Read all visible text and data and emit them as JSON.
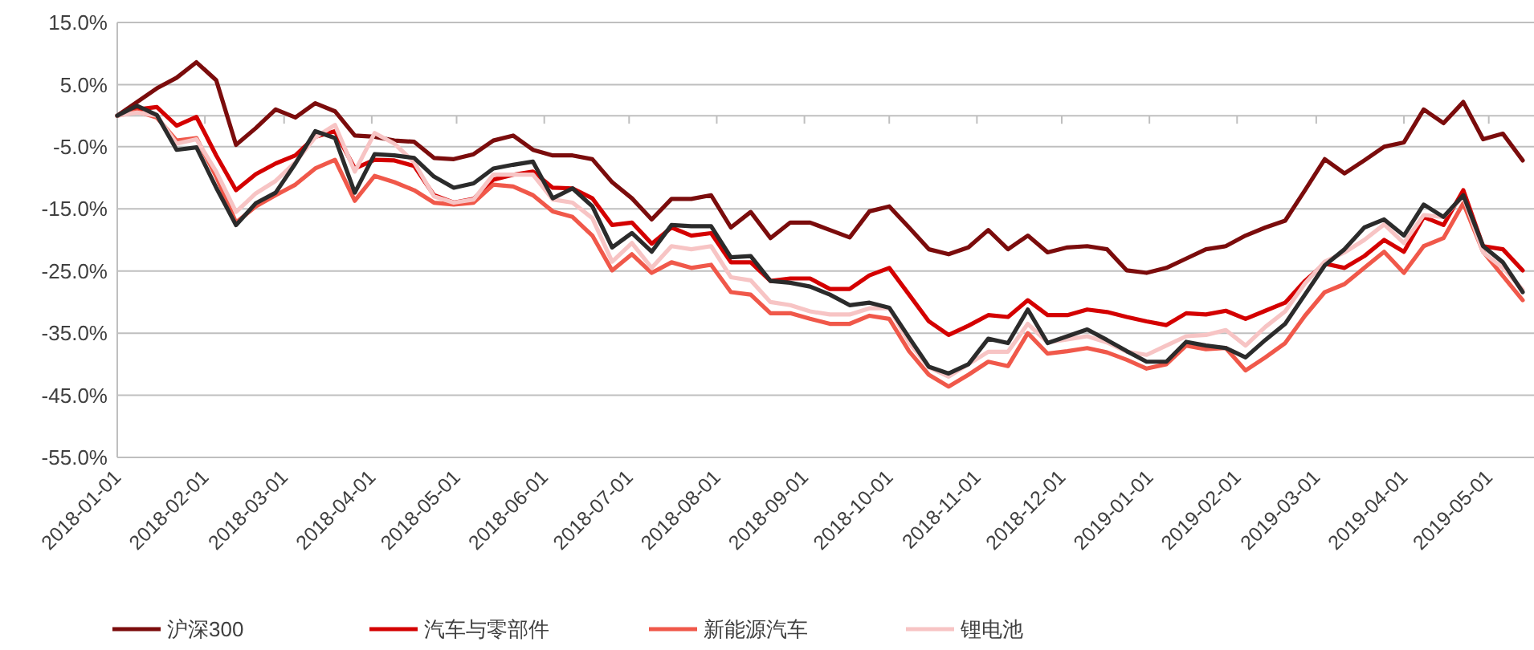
{
  "chart_data": {
    "type": "line",
    "x": [
      "2018-01-01",
      "2018-01-08",
      "2018-01-15",
      "2018-01-22",
      "2018-01-29",
      "2018-02-05",
      "2018-02-12",
      "2018-02-19",
      "2018-02-26",
      "2018-03-05",
      "2018-03-12",
      "2018-03-19",
      "2018-03-26",
      "2018-04-02",
      "2018-04-09",
      "2018-04-16",
      "2018-04-23",
      "2018-04-30",
      "2018-05-07",
      "2018-05-14",
      "2018-05-21",
      "2018-05-28",
      "2018-06-04",
      "2018-06-11",
      "2018-06-18",
      "2018-06-25",
      "2018-07-02",
      "2018-07-09",
      "2018-07-16",
      "2018-07-23",
      "2018-07-30",
      "2018-08-06",
      "2018-08-13",
      "2018-08-20",
      "2018-08-27",
      "2018-09-03",
      "2018-09-10",
      "2018-09-17",
      "2018-09-24",
      "2018-10-01",
      "2018-10-08",
      "2018-10-15",
      "2018-10-22",
      "2018-10-29",
      "2018-11-05",
      "2018-11-12",
      "2018-11-19",
      "2018-11-26",
      "2018-12-03",
      "2018-12-10",
      "2018-12-17",
      "2018-12-24",
      "2018-12-31",
      "2019-01-07",
      "2019-01-14",
      "2019-01-21",
      "2019-01-28",
      "2019-02-04",
      "2019-02-11",
      "2019-02-18",
      "2019-02-25",
      "2019-03-04",
      "2019-03-11",
      "2019-03-18",
      "2019-03-25",
      "2019-04-01",
      "2019-04-08",
      "2019-04-15",
      "2019-04-22",
      "2019-04-29",
      "2019-05-06",
      "2019-05-13"
    ],
    "series": [
      {
        "name": "沪深300",
        "color": "#7b0c0c",
        "values": [
          0,
          2.2,
          4.4,
          6.1,
          8.6,
          5.7,
          -4.7,
          -2,
          1,
          -0.3,
          2,
          0.7,
          -3.2,
          -3.4,
          -4,
          -4.2,
          -6.8,
          -7,
          -6.2,
          -4,
          -3.2,
          -5.5,
          -6.4,
          -6.4,
          -7,
          -10.7,
          -13.3,
          -16.7,
          -13.4,
          -13.4,
          -12.8,
          -18,
          -15.5,
          -19.7,
          -17.2,
          -17.2,
          -18.4,
          -19.6,
          -15.4,
          -14.6,
          -18,
          -21.5,
          -22.3,
          -21.2,
          -18.4,
          -21.5,
          -19.3,
          -22,
          -21.2,
          -21,
          -21.5,
          -24.9,
          -25.3,
          -24.5,
          -23,
          -21.5,
          -21,
          -19.3,
          -18,
          -16.9,
          -12,
          -7,
          -9.3,
          -7.2,
          -5,
          -4.3,
          1,
          -1.2,
          2.2,
          -3.8,
          -2.9,
          -7.2
        ]
      },
      {
        "name": "汽车与零部件",
        "color": "#d40000",
        "values": [
          0,
          1,
          1.4,
          -1.6,
          -0.2,
          -6.4,
          -12,
          -9.4,
          -7.7,
          -6.4,
          -3.4,
          -2.5,
          -8.5,
          -7.1,
          -7.2,
          -8.1,
          -12.8,
          -14,
          -13.4,
          -10.3,
          -9.5,
          -9,
          -11.6,
          -11.7,
          -13.3,
          -17.6,
          -17.2,
          -20.6,
          -18,
          -19.3,
          -18.9,
          -23.6,
          -23.6,
          -26.6,
          -26.2,
          -26.2,
          -27.9,
          -27.9,
          -25.7,
          -24.5,
          -28.8,
          -33.1,
          -35.3,
          -33.8,
          -32.1,
          -32.4,
          -29.7,
          -32.1,
          -32.1,
          -31.2,
          -31.6,
          -32.4,
          -33.1,
          -33.7,
          -31.8,
          -32,
          -31.4,
          -32.7,
          -31.4,
          -30.1,
          -26.6,
          -23.8,
          -24.5,
          -22.6,
          -20,
          -21.9,
          -16.3,
          -17.6,
          -12,
          -21,
          -21.5,
          -24.9
        ]
      },
      {
        "name": "新能源汽车",
        "color": "#f0584a",
        "values": [
          0,
          0.7,
          -0.3,
          -4,
          -3.6,
          -9.8,
          -17.2,
          -14.6,
          -12.8,
          -11.1,
          -8.5,
          -7.1,
          -13.7,
          -9.7,
          -10.7,
          -12,
          -14,
          -14.3,
          -14,
          -11.1,
          -11.4,
          -12.8,
          -15.4,
          -16.3,
          -19.3,
          -24.9,
          -22.3,
          -25.3,
          -23.6,
          -24.5,
          -24,
          -28.4,
          -28.8,
          -31.8,
          -31.8,
          -32.7,
          -33.5,
          -33.5,
          -32.2,
          -32.7,
          -37.9,
          -41.7,
          -43.6,
          -41.7,
          -39.6,
          -40.3,
          -35,
          -38.3,
          -37.9,
          -37.4,
          -38.1,
          -39.3,
          -40.7,
          -40,
          -37,
          -37.6,
          -37.4,
          -41,
          -38.9,
          -36.6,
          -32.2,
          -28.4,
          -27.1,
          -24.5,
          -21.9,
          -25.3,
          -21,
          -19.7,
          -14.1,
          -21.9,
          -25.8,
          -29.7
        ]
      },
      {
        "name": "锂电池",
        "color": "#f7c4c4",
        "values": [
          0,
          0.5,
          0,
          -4.5,
          -3.8,
          -9,
          -15.5,
          -12.5,
          -10.5,
          -7.5,
          -3.5,
          -1.5,
          -9,
          -2.8,
          -4.5,
          -7.5,
          -13,
          -14,
          -13.5,
          -9.5,
          -9.5,
          -9.5,
          -13.5,
          -14,
          -16.5,
          -23.5,
          -20.5,
          -24.5,
          -21,
          -21.5,
          -21,
          -26,
          -26.5,
          -30,
          -30.5,
          -31.5,
          -32,
          -32,
          -31,
          -31,
          -36.5,
          -40.5,
          -42,
          -40,
          -38,
          -38,
          -33.5,
          -36.5,
          -36,
          -35.5,
          -36.5,
          -38,
          -38.5,
          -37,
          -35.5,
          -35.3,
          -34.5,
          -37,
          -34,
          -31.5,
          -27,
          -23.5,
          -22,
          -20,
          -17.5,
          -20.5,
          -16,
          -16.3,
          -13,
          -22,
          -24.5,
          -28
        ]
      },
      {
        "color": "#2b2b2b",
        "values": [
          0,
          1.6,
          0.1,
          -5.5,
          -5.1,
          -11.6,
          -17.6,
          -14.1,
          -12.4,
          -7.7,
          -2.5,
          -3.6,
          -12.4,
          -6.2,
          -6.4,
          -6.8,
          -9.8,
          -11.6,
          -10.9,
          -8.5,
          -7.9,
          -7.4,
          -13.3,
          -11.7,
          -14.6,
          -21.2,
          -18.9,
          -21.9,
          -17.6,
          -17.8,
          -17.8,
          -22.8,
          -22.6,
          -26.6,
          -26.9,
          -27.5,
          -28.8,
          -30.5,
          -30.1,
          -30.9,
          -35.7,
          -40.4,
          -41.5,
          -40,
          -35.9,
          -36.6,
          -31.2,
          -36.6,
          -35.5,
          -34.4,
          -36.1,
          -37.9,
          -39.6,
          -39.6,
          -36.4,
          -37,
          -37.4,
          -38.9,
          -36.1,
          -33.5,
          -28.8,
          -24.1,
          -21.5,
          -18,
          -16.7,
          -19.3,
          -14.3,
          -16.3,
          -12.8,
          -21,
          -23.6,
          -28.4
        ]
      }
    ],
    "xlim": [
      "2018-01-01",
      "2019-05-17"
    ],
    "xticks": [
      {
        "value": "2018-01-01",
        "label": "2018-01-01"
      },
      {
        "value": "2018-02-01",
        "label": "2018-02-01"
      },
      {
        "value": "2018-03-01",
        "label": "2018-03-01"
      },
      {
        "value": "2018-04-01",
        "label": "2018-04-01"
      },
      {
        "value": "2018-05-01",
        "label": "2018-05-01"
      },
      {
        "value": "2018-06-01",
        "label": "2018-06-01"
      },
      {
        "value": "2018-07-01",
        "label": "2018-07-01"
      },
      {
        "value": "2018-08-01",
        "label": "2018-08-01"
      },
      {
        "value": "2018-09-01",
        "label": "2018-09-01"
      },
      {
        "value": "2018-10-01",
        "label": "2018-10-01"
      },
      {
        "value": "2018-11-01",
        "label": "2018-11-01"
      },
      {
        "value": "2018-12-01",
        "label": "2018-12-01"
      },
      {
        "value": "2019-01-01",
        "label": "2019-01-01"
      },
      {
        "value": "2019-02-01",
        "label": "2019-02-01"
      },
      {
        "value": "2019-03-01",
        "label": "2019-03-01"
      },
      {
        "value": "2019-04-01",
        "label": "2019-04-01"
      },
      {
        "value": "2019-05-01",
        "label": "2019-05-01"
      }
    ],
    "ylim": [
      -55,
      15
    ],
    "yticks": [
      {
        "value": -55,
        "label": "-55.0%"
      },
      {
        "value": -45,
        "label": "-45.0%"
      },
      {
        "value": -35,
        "label": "-35.0%"
      },
      {
        "value": -25,
        "label": "-25.0%"
      },
      {
        "value": -15,
        "label": "-15.0%"
      },
      {
        "value": -5,
        "label": "-5.0%"
      },
      {
        "value": 5,
        "label": "5.0%"
      },
      {
        "value": 15,
        "label": "15.0%"
      }
    ],
    "grid": "y",
    "legend": "bottom",
    "marker": "none",
    "line_style": "solid"
  }
}
